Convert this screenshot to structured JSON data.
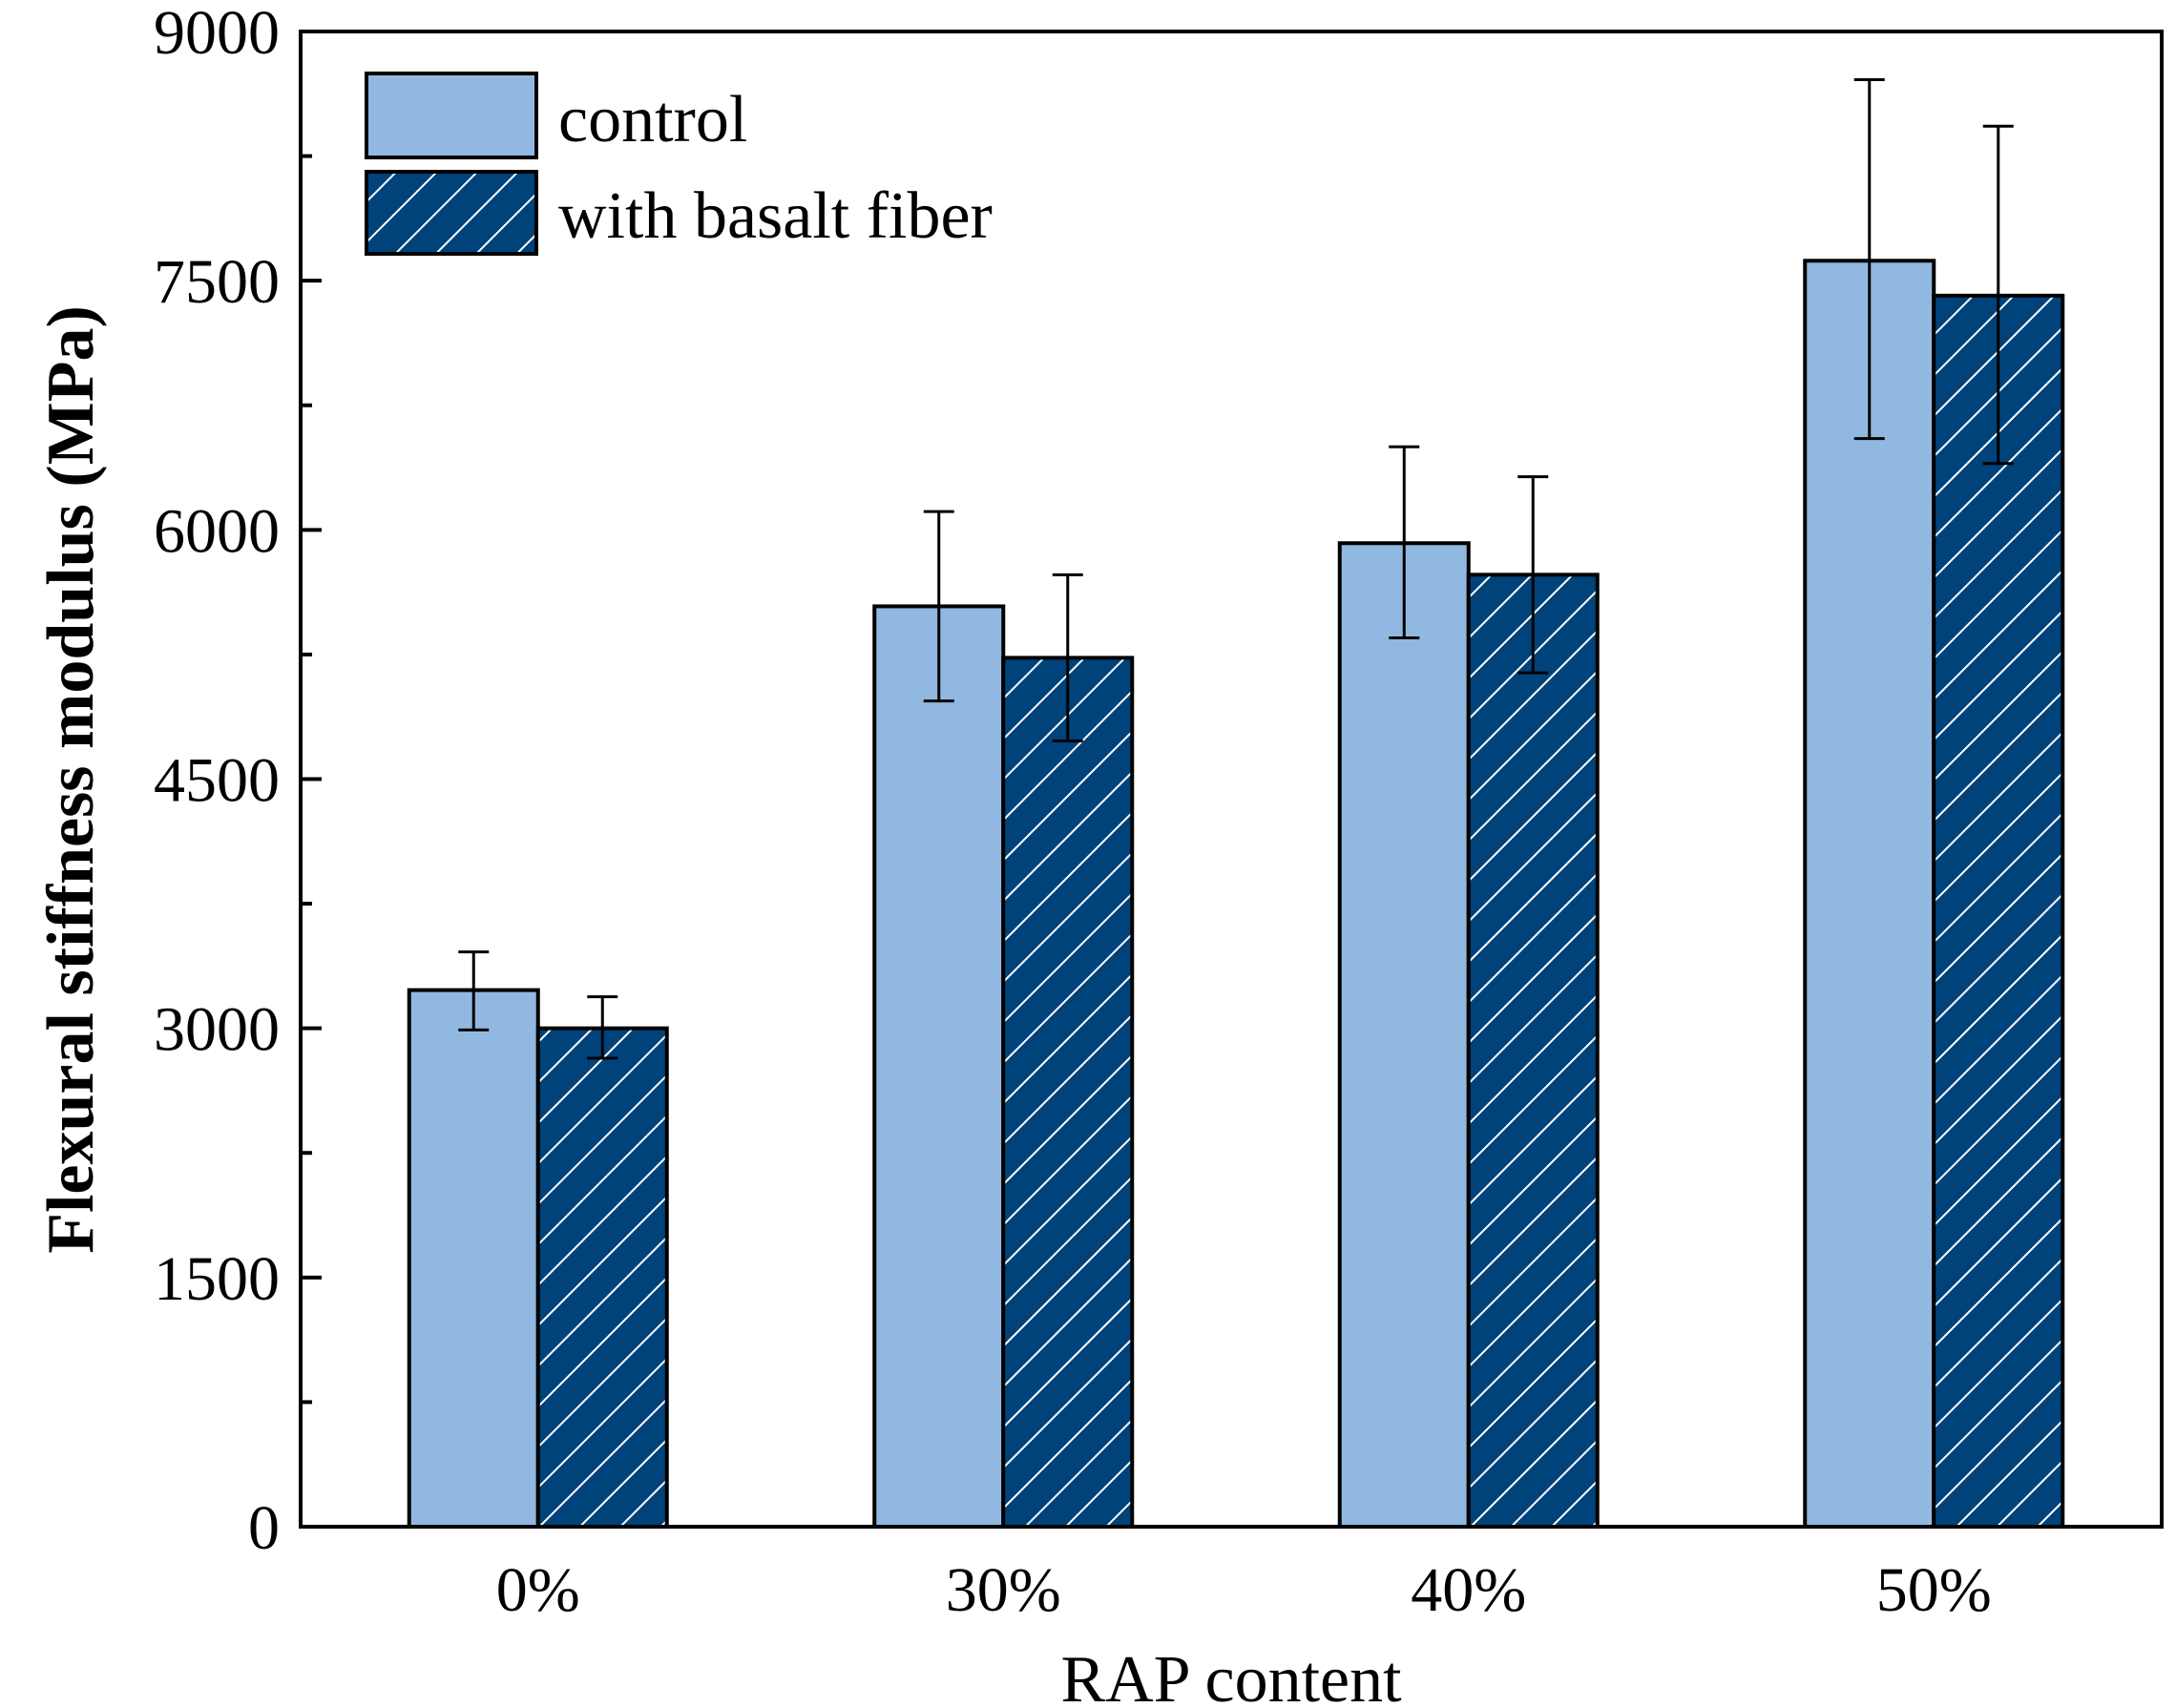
{
  "chart_data": {
    "type": "bar",
    "title": "",
    "xlabel": "RAP content",
    "ylabel": "Flexural stiffness modulus (MPa)",
    "ylim": [
      0,
      9000
    ],
    "yticks": [
      0,
      1500,
      3000,
      4500,
      6000,
      7500,
      9000
    ],
    "ytick_labels": [
      "0",
      "1500",
      "3000",
      "4500",
      "6000",
      "7500",
      "9000"
    ],
    "categories": [
      "0%",
      "30%",
      "40%",
      "50%"
    ],
    "legend_position": "top-left",
    "series": [
      {
        "name": "control",
        "color": "#91B8E0",
        "pattern": "solid",
        "values": [
          3230,
          5540,
          5920,
          7620
        ],
        "error_low": [
          2990,
          4970,
          5350,
          6550
        ],
        "error_high": [
          3460,
          6110,
          6500,
          8710
        ]
      },
      {
        "name": "with basalt fiber",
        "color": "#00427A",
        "pattern": "hatched",
        "values": [
          3000,
          5230,
          5730,
          7410
        ],
        "error_low": [
          2820,
          4730,
          5140,
          6400
        ],
        "error_high": [
          3190,
          5730,
          6320,
          8430
        ]
      }
    ]
  }
}
